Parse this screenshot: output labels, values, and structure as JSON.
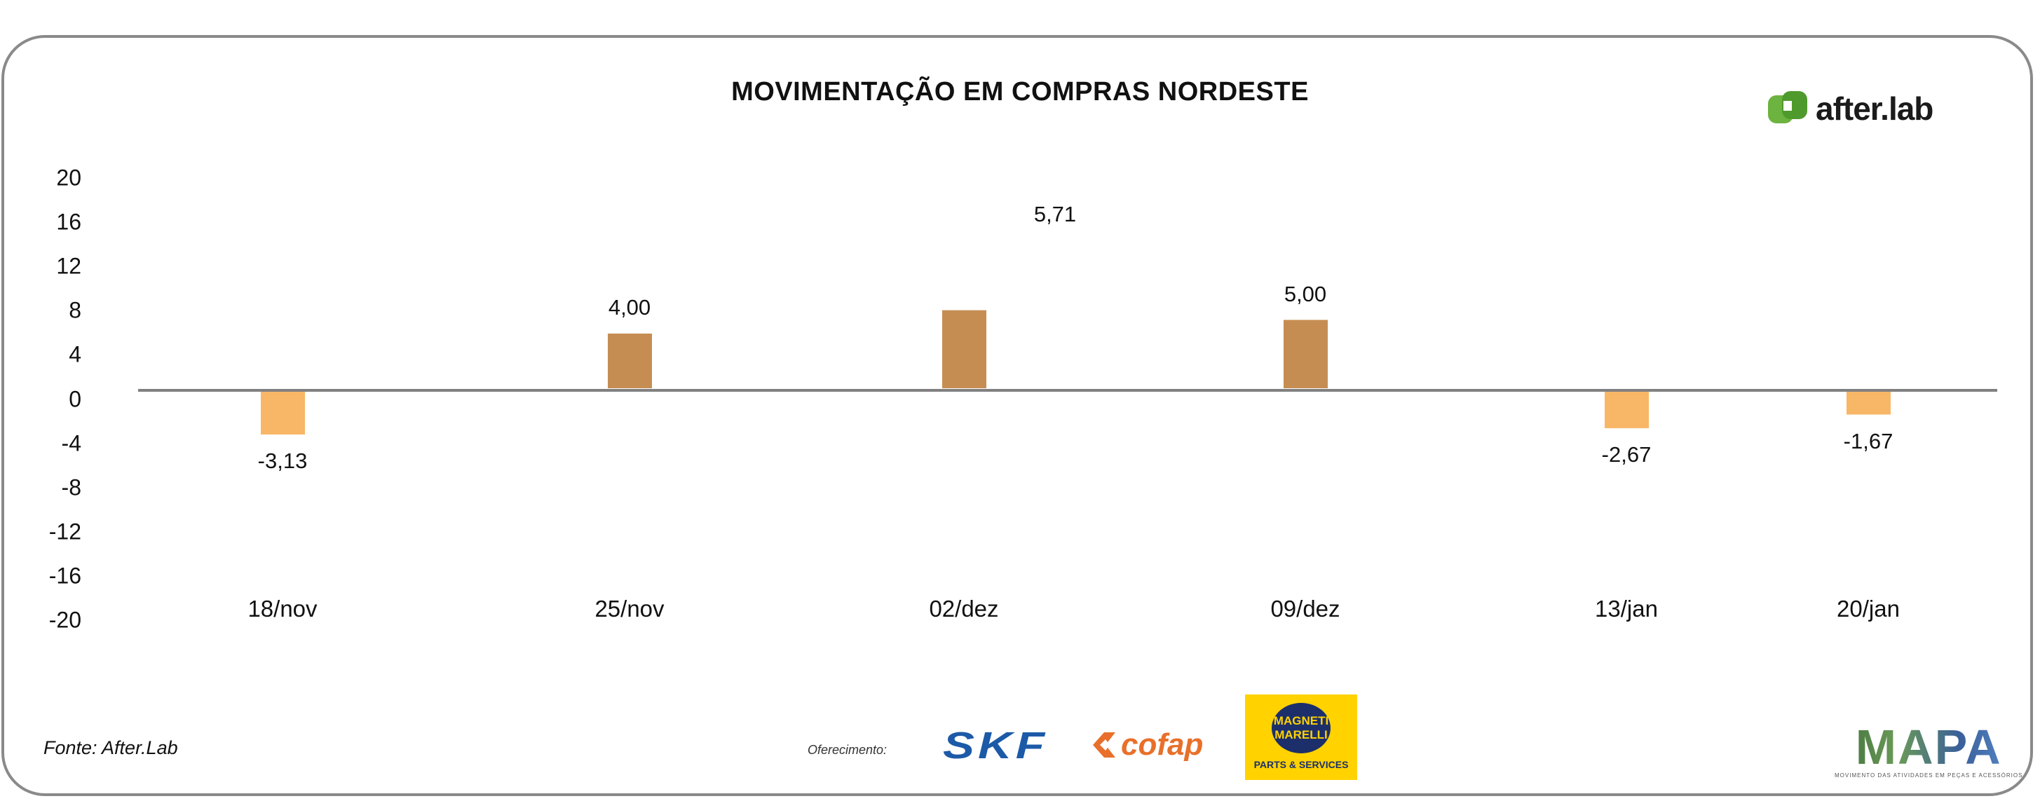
{
  "chart_data": {
    "type": "bar",
    "title": "MOVIMENTAÇÃO EM COMPRAS NORDESTE",
    "categories": [
      "18/nov",
      "25/nov",
      "02/dez",
      "09/dez",
      "13/jan",
      "20/jan"
    ],
    "values": [
      -3.13,
      4.0,
      5.71,
      5.0,
      -2.67,
      -1.67
    ],
    "data_labels": [
      "-3,13",
      "4,00",
      "5,71",
      "5,00",
      "-2,67",
      "-1,67"
    ],
    "yticks": [
      "20",
      "16",
      "12",
      "8",
      "4",
      "0",
      "-4",
      "-8",
      "-12",
      "-16",
      "-20"
    ],
    "ylim": [
      -20,
      20
    ],
    "xlabel": "",
    "ylabel": "",
    "grid": false,
    "colors": {
      "positive": "#C68D52",
      "negative": "#F8B766",
      "zero_line": "#808080"
    }
  },
  "source": "Fonte: After.Lab",
  "logos": {
    "brand": "after.lab",
    "sponsor_label": "Oferecimento:",
    "skf": "SKF",
    "cofap": "cofap",
    "magneti_marelli": "MAGNETI MARELLI",
    "magneti_marelli_line1": "MAGNETI",
    "magneti_marelli_line2": "MARELLI",
    "magneti_marelli_sub": "PARTS & SERVICES",
    "mapa": "MAPA",
    "mapa_sub": "MOVIMENTO DAS ATIVIDADES EM PEÇAS E ACESSÓRIOS"
  }
}
